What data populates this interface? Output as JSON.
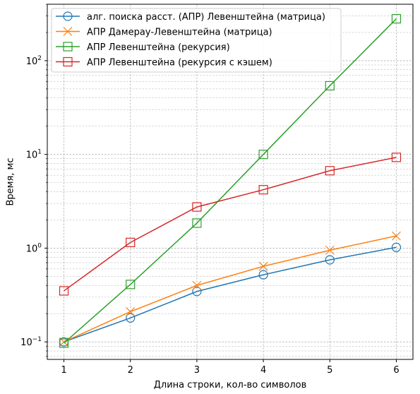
{
  "chart_data": {
    "type": "line",
    "title": "",
    "xlabel": "Длина строки, кол-во символов",
    "ylabel": "Время, мс",
    "yscale": "log",
    "grid": true,
    "legend_position": "top-left",
    "xlim": [
      0.75,
      6.25
    ],
    "ylim": [
      0.065,
      400
    ],
    "x_ticks": [
      1,
      2,
      3,
      4,
      5,
      6
    ],
    "y_ticks": [
      {
        "value": 0.1,
        "base": "10",
        "exp": "−1"
      },
      {
        "value": 1,
        "base": "10",
        "exp": "0"
      },
      {
        "value": 10,
        "base": "10",
        "exp": "1"
      },
      {
        "value": 100,
        "base": "10",
        "exp": "2"
      }
    ],
    "x": [
      1,
      2,
      3,
      4,
      5,
      6
    ],
    "series": [
      {
        "name": "алг. поиска расст. (АПР) Левенштейна (матрица)",
        "color": "#1f77b4",
        "marker": "circle",
        "values": [
          0.1,
          0.18,
          0.345,
          0.52,
          0.75,
          1.02
        ]
      },
      {
        "name": "АПР Дамерау-Левенштейна (матрица)",
        "color": "#ff7f0e",
        "marker": "x",
        "values": [
          0.1,
          0.21,
          0.4,
          0.64,
          0.95,
          1.35
        ]
      },
      {
        "name": "АПР Левенштейна (рекурсия)",
        "color": "#2ca02c",
        "marker": "square",
        "values": [
          0.097,
          0.41,
          1.85,
          10.0,
          54,
          280
        ]
      },
      {
        "name": "АПР Левенштейна (рекурсия с кэшем)",
        "color": "#d62728",
        "marker": "square",
        "values": [
          0.35,
          1.15,
          2.75,
          4.2,
          6.7,
          9.3
        ]
      }
    ]
  }
}
